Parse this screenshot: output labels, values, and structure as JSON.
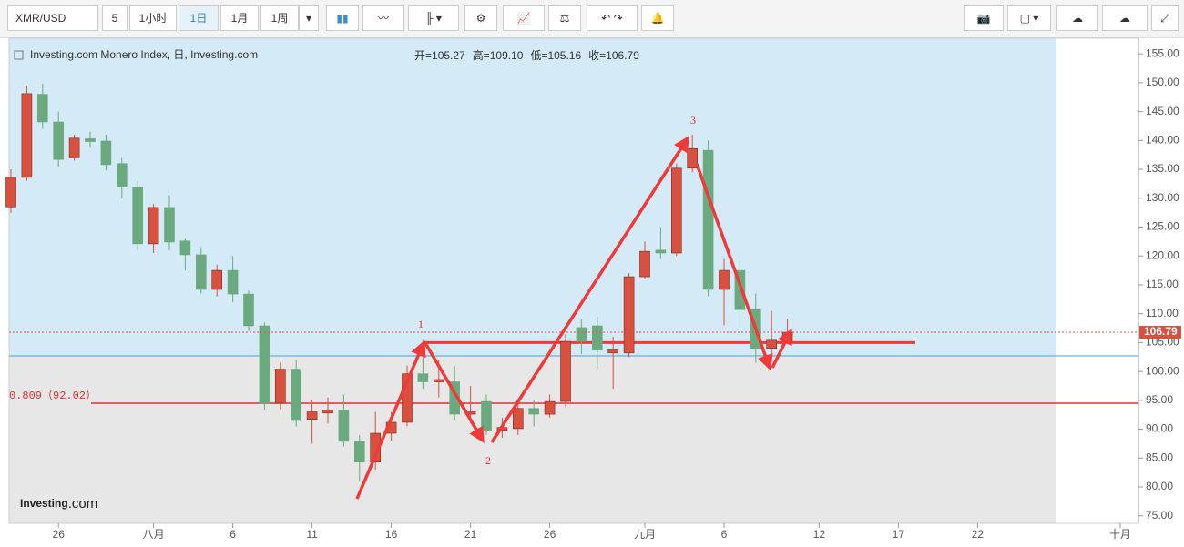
{
  "toolbar": {
    "symbol": "XMR/USD",
    "intervals": [
      "5",
      "1小时",
      "1日",
      "1月",
      "1周"
    ],
    "active": 2
  },
  "chart_data": {
    "type": "candlestick",
    "title": "Investing.com Monero Index, 日, Investing.com",
    "legend": [
      {
        "name": "开=",
        "value": "105.27"
      },
      {
        "name": "高=",
        "value": "109.10"
      },
      {
        "name": "低=",
        "value": "105.16"
      },
      {
        "name": "收=",
        "value": "106.79"
      }
    ],
    "watermark": {
      "brand": "Investing",
      "suffix": ".com"
    },
    "categories": [
      null,
      null,
      null,
      "26",
      null,
      null,
      null,
      null,
      null,
      "八月",
      null,
      null,
      null,
      null,
      "6",
      null,
      null,
      null,
      null,
      "11",
      null,
      null,
      null,
      null,
      "16",
      null,
      null,
      null,
      null,
      "21",
      null,
      null,
      null,
      null,
      "26",
      null,
      null,
      null,
      null,
      null,
      "九月",
      null,
      null,
      null,
      null,
      "6",
      null,
      null,
      null,
      null,
      null,
      "12",
      null,
      null,
      null,
      null,
      "17",
      null,
      null,
      null,
      null,
      "22",
      null,
      null,
      null,
      null,
      null,
      null,
      null,
      null,
      "十月"
    ],
    "open": [
      128.5,
      133.6,
      148,
      143.2,
      137,
      140.3,
      139.9,
      136,
      131.9,
      122.1,
      128.4,
      122.6,
      120.2,
      114.2,
      117.5,
      113.4,
      107.9,
      94.5,
      100.4,
      91.7,
      92.8,
      93.3,
      87.9,
      84.3,
      89.3,
      91.2,
      99.6,
      98.2,
      98.2,
      92.6,
      94.8,
      89.8,
      90.1,
      93.6,
      92.6,
      94.8,
      107.6,
      107.9,
      103.2,
      103.2,
      116.4,
      121,
      120.5,
      135.2,
      138.3,
      114.2,
      117.5,
      110.7,
      104,
      105.27,
      null,
      null,
      null,
      null,
      null,
      null,
      null,
      null,
      null,
      null,
      null,
      null,
      null,
      null,
      null,
      null,
      null,
      null,
      null,
      null,
      null
    ],
    "high": [
      135,
      149.5,
      149.8,
      145,
      141,
      141.5,
      141,
      137,
      133,
      129,
      130.5,
      123,
      121.5,
      118.5,
      120,
      114,
      108.5,
      101.5,
      102,
      95,
      95.5,
      96,
      89,
      93,
      93,
      101,
      105.5,
      102,
      101,
      97.5,
      96,
      92,
      94.5,
      95,
      96,
      106.5,
      109,
      109.5,
      106,
      117,
      122.5,
      125,
      136,
      141,
      140,
      119.5,
      119,
      113.5,
      110.5,
      109.1,
      null,
      null,
      null,
      null,
      null,
      null,
      null,
      null,
      null,
      null,
      null,
      null,
      null,
      null,
      null,
      null,
      null,
      null,
      null,
      null,
      null
    ],
    "low": [
      127.5,
      133,
      142,
      135.5,
      136.5,
      138.8,
      134.8,
      130,
      121,
      120.5,
      121,
      117.5,
      113.5,
      113,
      112,
      107,
      93.3,
      93.5,
      90.5,
      87.5,
      91,
      87,
      81,
      83,
      88,
      90.5,
      97,
      95.5,
      91.5,
      91,
      89,
      88.5,
      89,
      90.5,
      92,
      93.8,
      103,
      100.5,
      97,
      102.5,
      116,
      119.5,
      120,
      134.5,
      113,
      108,
      106.5,
      101.5,
      102.5,
      105.16,
      null,
      null,
      null,
      null,
      null,
      null,
      null,
      null,
      null,
      null,
      null,
      null,
      null,
      null,
      null,
      null,
      null,
      null,
      null,
      null,
      null
    ],
    "close": [
      133.6,
      148.1,
      143.2,
      136.7,
      140.4,
      139.8,
      135.8,
      131.9,
      122.1,
      128.4,
      122.4,
      120.2,
      114.2,
      117.5,
      113.4,
      107.9,
      94.5,
      100.4,
      91.5,
      93,
      93.3,
      87.9,
      84.3,
      89.3,
      91.2,
      99.6,
      98.2,
      98.6,
      92.6,
      93,
      89.8,
      90.3,
      93.6,
      92.6,
      94.8,
      105.2,
      105.2,
      103.7,
      103.8,
      116.4,
      120.8,
      120.5,
      135.2,
      138.6,
      114.2,
      117.5,
      110.7,
      104,
      105.4,
      106.79,
      null,
      null,
      null,
      null,
      null,
      null,
      null,
      null,
      null,
      null,
      null,
      null,
      null,
      null,
      null,
      null,
      null,
      null,
      null,
      null,
      null
    ],
    "up_color": "#d9503f",
    "down_color": "#6aaa7e",
    "ylim": [
      73.7,
      157.7
    ],
    "yticks": [
      {
        "value": 75,
        "label": "75.00"
      },
      {
        "value": 80,
        "label": "80.00"
      },
      {
        "value": 85,
        "label": "85.00"
      },
      {
        "value": 90,
        "label": "90.00"
      },
      {
        "value": 95,
        "label": "95.00"
      },
      {
        "value": 100,
        "label": "100.00"
      },
      {
        "value": 105,
        "label": "105.00"
      },
      {
        "value": 110,
        "label": "110.00"
      },
      {
        "value": 115,
        "label": "115.00"
      },
      {
        "value": 120,
        "label": "120.00"
      },
      {
        "value": 125,
        "label": "125.00"
      },
      {
        "value": 130,
        "label": "130.00"
      },
      {
        "value": 135,
        "label": "135.00"
      },
      {
        "value": 140,
        "label": "140.00"
      },
      {
        "value": 145,
        "label": "145.00"
      },
      {
        "value": 150,
        "label": "150.00"
      },
      {
        "value": 155,
        "label": "155.00"
      }
    ],
    "annotations": [
      {
        "label": "0.809（92.02）",
        "value": 94.5,
        "color": "#e03030"
      },
      {
        "value": 102.7,
        "color": "#4aa3d8"
      },
      {
        "value": 105,
        "color": "#f03a3a"
      }
    ],
    "wave_labels": [
      "1",
      "2",
      "3"
    ]
  }
}
